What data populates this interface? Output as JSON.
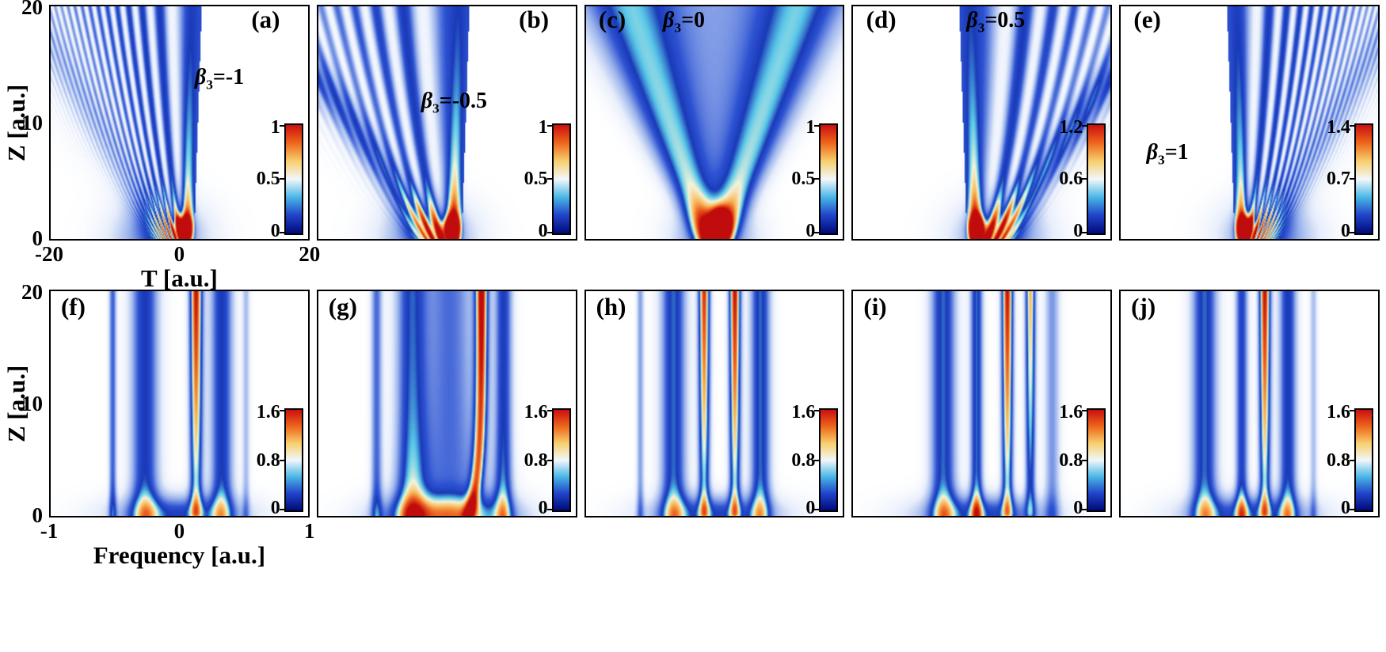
{
  "chart_data": {
    "type": "heatmap",
    "description": "Pulse propagation intensity maps for different third-order dispersion values beta3; top row temporal evolution, bottom row spectral evolution",
    "colormap": [
      [
        0.0,
        "#ffffff"
      ],
      [
        0.1,
        "#e8eefb"
      ],
      [
        0.25,
        "#9ab3ec"
      ],
      [
        0.42,
        "#2d52d2"
      ],
      [
        0.52,
        "#1a3ab8"
      ],
      [
        0.61,
        "#5ac8e8"
      ],
      [
        0.69,
        "#f3f4da"
      ],
      [
        0.79,
        "#f8b858"
      ],
      [
        0.89,
        "#ea581e"
      ],
      [
        1.0,
        "#c00c0c"
      ]
    ],
    "colorbar_gradient": [
      "#000a78",
      "#2143c9",
      "#49b6e6",
      "#f2f7fb",
      "#f7cf6e",
      "#ee671c",
      "#cb0f0f"
    ],
    "rows": [
      {
        "ylabel": "Z [a.u.]",
        "xlabel": "T [a.u.]",
        "xlim": [
          -20,
          20
        ],
        "ylim": [
          0,
          20
        ],
        "xticks": [
          "-20",
          "0",
          "20"
        ],
        "yticks": [
          "20",
          "10",
          "0"
        ],
        "grid": false,
        "panels": [
          {
            "label": "(a)",
            "beta": "=-1",
            "colorbar_ticks": [
              "1",
              "0.5",
              "0"
            ],
            "layout": {
              "letter": [
                0.78,
                0.005
              ],
              "beta_pos": [
                0.56,
                0.26
              ],
              "cbar_h": 0.48
            },
            "pattern": {
              "kind": "fan",
              "dir": 1,
              "freq": 3.2,
              "spread": 1.05,
              "edge_band": 0.12
            }
          },
          {
            "label": "(b)",
            "beta": "=-0.5",
            "colorbar_ticks": [
              "1",
              "0.5",
              "0"
            ],
            "layout": {
              "letter": [
                0.78,
                0.005
              ],
              "beta_pos": [
                0.4,
                0.36
              ],
              "cbar_h": 0.48
            },
            "pattern": {
              "kind": "fan",
              "dir": 1,
              "freq": 1.3,
              "spread": 1.25,
              "edge_band": 0.32
            }
          },
          {
            "label": "(c)",
            "beta": "=0",
            "colorbar_ticks": [
              "1",
              "0.5",
              "0"
            ],
            "layout": {
              "letter": [
                0.05,
                0.005
              ],
              "beta_pos": [
                0.3,
                0.015
              ],
              "cbar_h": 0.48
            },
            "pattern": {
              "kind": "vee"
            }
          },
          {
            "label": "(d)",
            "beta": "=0.5",
            "colorbar_ticks": [
              "1.2",
              "0.6",
              "0"
            ],
            "layout": {
              "letter": [
                0.05,
                0.005
              ],
              "beta_pos": [
                0.44,
                0.015
              ],
              "cbar_h": 0.48
            },
            "pattern": {
              "kind": "fan",
              "dir": -1,
              "freq": 1.3,
              "spread": 1.25,
              "edge_band": 0.36
            }
          },
          {
            "label": "(e)",
            "beta": "=1",
            "colorbar_ticks": [
              "1.4",
              "0.7",
              "0"
            ],
            "layout": {
              "letter": [
                0.05,
                0.005
              ],
              "beta_pos": [
                0.1,
                0.58
              ],
              "cbar_h": 0.48
            },
            "pattern": {
              "kind": "fan",
              "dir": -1,
              "freq": 3.2,
              "spread": 1.05,
              "edge_band": 0.15
            }
          }
        ]
      },
      {
        "ylabel": "Z [a.u.]",
        "xlabel": "Frequency [a.u.]",
        "xlim": [
          -1,
          1
        ],
        "ylim": [
          0,
          20
        ],
        "xticks": [
          "-1",
          "0",
          "1"
        ],
        "yticks": [
          "20",
          "10",
          "0"
        ],
        "grid": false,
        "panels": [
          {
            "label": "(f)",
            "beta": null,
            "colorbar_ticks": [
              "1.6",
              "0.8",
              "0"
            ],
            "layout": {
              "letter": [
                0.04,
                0.015
              ],
              "beta_pos": [
                0,
                0
              ],
              "cbar_h": 0.46
            },
            "pattern": {
              "kind": "spectral",
              "bands": [
                {
                  "c": -0.52,
                  "w": 0.03,
                  "a": 0.4
                },
                {
                  "c": -0.27,
                  "w": 0.11,
                  "a": 0.52
                },
                {
                  "c": 0.13,
                  "w": 0.05,
                  "a": 1.0,
                  "hot": 1
                },
                {
                  "c": 0.33,
                  "w": 0.09,
                  "a": 0.52
                },
                {
                  "c": 0.52,
                  "w": 0.03,
                  "a": 0.22
                }
              ]
            }
          },
          {
            "label": "(g)",
            "beta": null,
            "colorbar_ticks": [
              "1.6",
              "0.8",
              "0"
            ],
            "layout": {
              "letter": [
                0.04,
                0.015
              ],
              "beta_pos": [
                0,
                0
              ],
              "cbar_h": 0.46
            },
            "pattern": {
              "kind": "spectral",
              "bands": [
                {
                  "c": -0.55,
                  "w": 0.045,
                  "a": 0.38
                },
                {
                  "c": -0.28,
                  "w": 0.12,
                  "a": 0.5
                },
                {
                  "c": 0.02,
                  "w": 0.2,
                  "a": 0.38,
                  "grow": 1
                },
                {
                  "c": 0.27,
                  "w": 0.05,
                  "a": 1.0,
                  "hot": 1,
                  "tilt": -0.1
                },
                {
                  "c": 0.44,
                  "w": 0.07,
                  "a": 0.5
                }
              ]
            }
          },
          {
            "label": "(h)",
            "beta": null,
            "colorbar_ticks": [
              "1.6",
              "0.8",
              "0"
            ],
            "layout": {
              "letter": [
                0.04,
                0.015
              ],
              "beta_pos": [
                0,
                0
              ],
              "cbar_h": 0.46
            },
            "pattern": {
              "kind": "spectral",
              "bands": [
                {
                  "c": -0.58,
                  "w": 0.03,
                  "a": 0.28
                },
                {
                  "c": -0.32,
                  "w": 0.1,
                  "a": 0.55
                },
                {
                  "c": -0.08,
                  "w": 0.045,
                  "a": 0.95,
                  "hot": 1
                },
                {
                  "c": 0.16,
                  "w": 0.045,
                  "a": 1.0,
                  "hot": 1
                },
                {
                  "c": 0.36,
                  "w": 0.08,
                  "a": 0.55
                }
              ]
            }
          },
          {
            "label": "(i)",
            "beta": null,
            "colorbar_ticks": [
              "1.6",
              "0.8",
              "0"
            ],
            "layout": {
              "letter": [
                0.04,
                0.015
              ],
              "beta_pos": [
                0,
                0
              ],
              "cbar_h": 0.46
            },
            "pattern": {
              "kind": "spectral",
              "bands": [
                {
                  "c": -0.3,
                  "w": 0.1,
                  "a": 0.55
                },
                {
                  "c": -0.04,
                  "w": 0.05,
                  "a": 0.55
                },
                {
                  "c": 0.2,
                  "w": 0.045,
                  "a": 1.0,
                  "hot": 1
                },
                {
                  "c": 0.38,
                  "w": 0.04,
                  "a": 0.8,
                  "hot": 1
                },
                {
                  "c": 0.55,
                  "w": 0.06,
                  "a": 0.3
                }
              ]
            }
          },
          {
            "label": "(j)",
            "beta": null,
            "colorbar_ticks": [
              "1.6",
              "0.8",
              "0"
            ],
            "layout": {
              "letter": [
                0.04,
                0.015
              ],
              "beta_pos": [
                0,
                0
              ],
              "cbar_h": 0.46
            },
            "pattern": {
              "kind": "spectral",
              "bands": [
                {
                  "c": -0.35,
                  "w": 0.1,
                  "a": 0.55
                },
                {
                  "c": -0.06,
                  "w": 0.05,
                  "a": 0.48
                },
                {
                  "c": 0.12,
                  "w": 0.045,
                  "a": 1.0,
                  "hot": 1
                },
                {
                  "c": 0.3,
                  "w": 0.07,
                  "a": 0.52
                },
                {
                  "c": 0.5,
                  "w": 0.03,
                  "a": 0.22
                }
              ]
            }
          }
        ]
      }
    ]
  }
}
